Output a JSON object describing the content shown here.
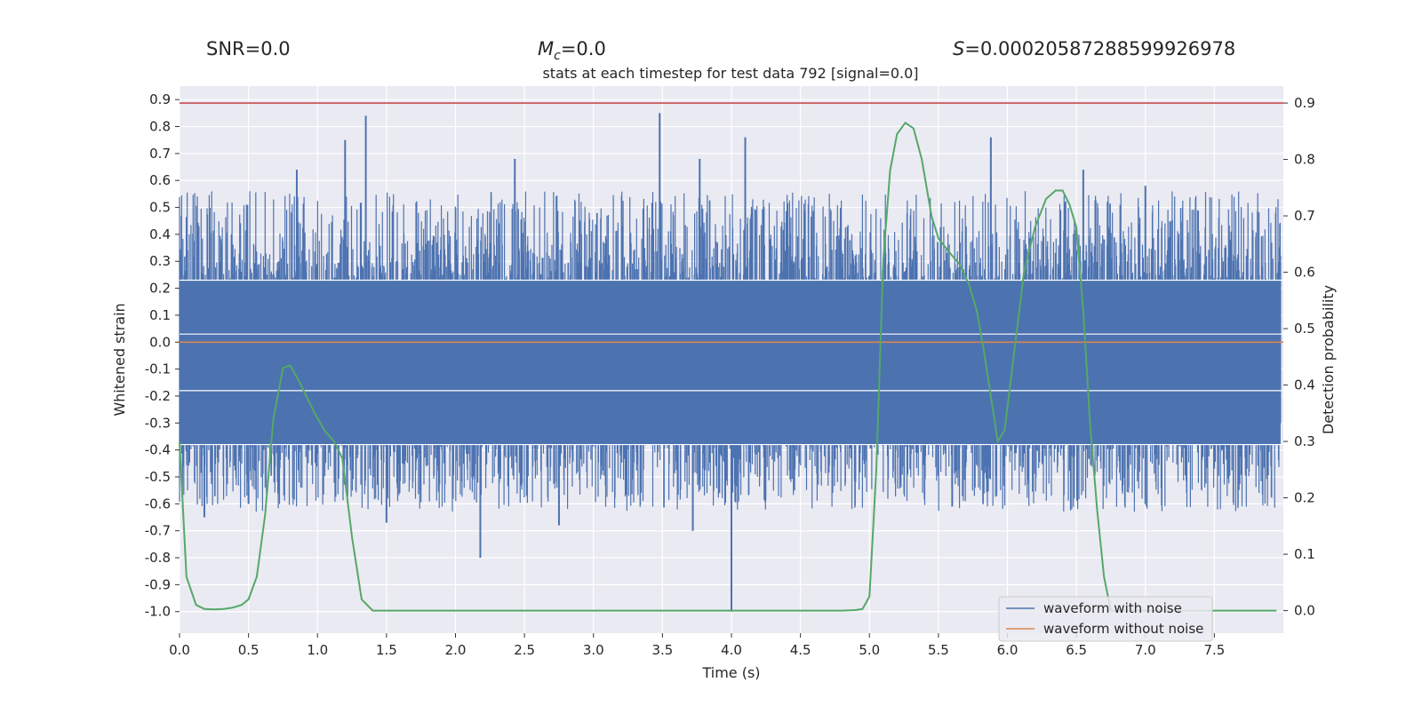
{
  "chart_data": {
    "type": "line",
    "header_stats": {
      "snr": "SNR=0.0",
      "mc_symbol": "M",
      "mc_subscript": "c",
      "mc_value": "=0.0",
      "s_symbol": "S",
      "s_value": "=0.00020587288599926978"
    },
    "title": "stats at each timestep for test data 792 [signal=0.0]",
    "xlabel": "Time (s)",
    "ylabel_left": "Whitened strain",
    "ylabel_right": "Detection probability",
    "xlim": [
      0.0,
      8.0
    ],
    "ylim_left": [
      -1.08,
      0.95
    ],
    "ylim_right": [
      -0.04,
      0.93
    ],
    "x_ticks": [
      "0.0",
      "0.5",
      "1.0",
      "1.5",
      "2.0",
      "2.5",
      "3.0",
      "3.5",
      "4.0",
      "4.5",
      "5.0",
      "5.5",
      "6.0",
      "6.5",
      "7.0",
      "7.5"
    ],
    "y_ticks_left": [
      "0.9",
      "0.8",
      "0.7",
      "0.6",
      "0.5",
      "0.4",
      "0.3",
      "0.2",
      "0.1",
      "0.0",
      "-0.1",
      "-0.2",
      "-0.3",
      "-0.4",
      "-0.5",
      "-0.6",
      "-0.7",
      "-0.8",
      "-0.9",
      "-1.0"
    ],
    "y_ticks_right": [
      "0.9",
      "0.8",
      "0.7",
      "0.6",
      "0.5",
      "0.4",
      "0.3",
      "0.2",
      "0.1",
      "0.0"
    ],
    "threshold": 0.9,
    "series": [
      {
        "name": "waveform with noise",
        "axis": "left",
        "color": "#4c72b0",
        "band": [
          -0.38,
          0.23
        ],
        "peaks": [
          {
            "t": 1.35,
            "v": 0.84
          },
          {
            "t": 3.48,
            "v": 0.85
          },
          {
            "t": 1.2,
            "v": 0.75
          },
          {
            "t": 0.85,
            "v": 0.64
          },
          {
            "t": 2.43,
            "v": 0.68
          },
          {
            "t": 3.77,
            "v": 0.68
          },
          {
            "t": 4.1,
            "v": 0.76
          },
          {
            "t": 5.88,
            "v": 0.76
          },
          {
            "t": 6.55,
            "v": 0.64
          },
          {
            "t": 7.0,
            "v": 0.58
          },
          {
            "t": 4.0,
            "v": -1.0
          },
          {
            "t": 2.18,
            "v": -0.8
          },
          {
            "t": 3.72,
            "v": -0.7
          },
          {
            "t": 1.5,
            "v": -0.67
          },
          {
            "t": 2.75,
            "v": -0.68
          },
          {
            "t": 0.18,
            "v": -0.65
          },
          {
            "t": 0.5,
            "v": -0.6
          },
          {
            "t": 5.6,
            "v": -0.61
          }
        ]
      },
      {
        "name": "waveform without noise",
        "axis": "left",
        "color": "#dd8452",
        "constant": 0.0
      },
      {
        "name": "detection probability",
        "axis": "right",
        "color": "#55a868",
        "x": [
          0.0,
          0.05,
          0.12,
          0.18,
          0.25,
          0.32,
          0.38,
          0.45,
          0.5,
          0.56,
          0.62,
          0.68,
          0.75,
          0.8,
          0.86,
          0.92,
          0.98,
          1.05,
          1.12,
          1.18,
          1.25,
          1.32,
          1.4,
          1.5,
          2.0,
          3.0,
          4.0,
          4.5,
          4.8,
          4.9,
          4.95,
          5.0,
          5.05,
          5.1,
          5.15,
          5.2,
          5.26,
          5.32,
          5.38,
          5.45,
          5.5,
          5.58,
          5.65,
          5.72,
          5.78,
          5.83,
          5.88,
          5.93,
          5.98,
          6.05,
          6.12,
          6.2,
          6.28,
          6.35,
          6.4,
          6.45,
          6.5,
          6.55,
          6.6,
          6.65,
          6.7,
          6.75,
          6.8,
          7.0,
          7.5,
          7.95
        ],
        "values": [
          0.3,
          0.06,
          0.01,
          0.003,
          0.002,
          0.003,
          0.005,
          0.01,
          0.02,
          0.06,
          0.17,
          0.34,
          0.43,
          0.435,
          0.41,
          0.38,
          0.35,
          0.32,
          0.3,
          0.27,
          0.13,
          0.02,
          0.0,
          0.0,
          0.0,
          0.0,
          0.0,
          0.0,
          0.0,
          0.001,
          0.003,
          0.025,
          0.25,
          0.62,
          0.78,
          0.845,
          0.865,
          0.855,
          0.8,
          0.7,
          0.66,
          0.635,
          0.615,
          0.58,
          0.53,
          0.46,
          0.38,
          0.3,
          0.32,
          0.46,
          0.6,
          0.68,
          0.73,
          0.745,
          0.745,
          0.72,
          0.68,
          0.53,
          0.33,
          0.18,
          0.06,
          0.0,
          0.0,
          0.0,
          0.0,
          0.0
        ]
      }
    ],
    "threshold_color": "#c44e52",
    "legend": {
      "position": "lower-right",
      "entries": [
        "waveform with noise",
        "waveform without noise"
      ]
    }
  }
}
